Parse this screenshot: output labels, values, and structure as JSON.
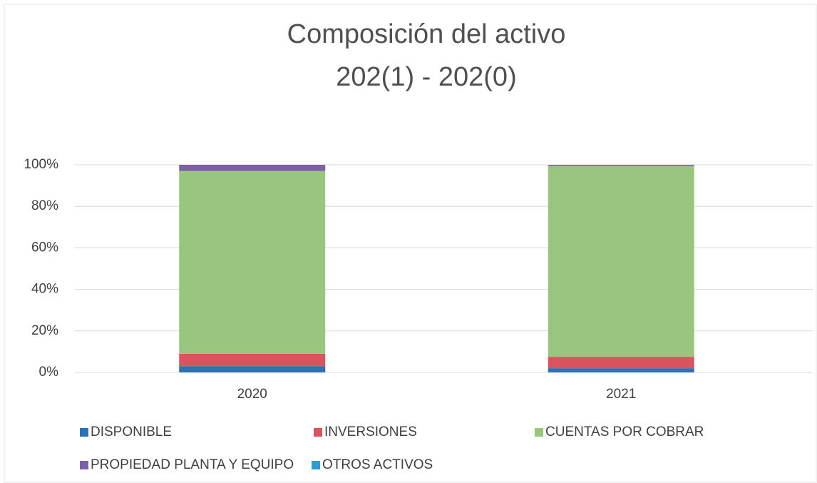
{
  "chart_data": {
    "type": "stacked_bar_100",
    "title": "Composición del activo",
    "subtitle": "202(1) - 202(0)",
    "categories": [
      "2020",
      "2021"
    ],
    "series": [
      {
        "name": "DISPONIBLE",
        "color": "#2e70b5",
        "values": [
          3,
          2
        ]
      },
      {
        "name": "INVERSIONES",
        "color": "#d9545f",
        "values": [
          6,
          5.5
        ]
      },
      {
        "name": "CUENTAS POR COBRAR",
        "color": "#98c67e",
        "values": [
          88,
          92
        ]
      },
      {
        "name": "PROPIEDAD PLANTA Y EQUIPO",
        "color": "#7d5fa8",
        "values": [
          3,
          0.5
        ]
      },
      {
        "name": "OTROS ACTIVOS",
        "color": "#2f9ad6",
        "values": [
          0,
          0
        ]
      }
    ],
    "ylim": [
      0,
      100
    ],
    "yticks": [
      {
        "value": 0,
        "label": "0%"
      },
      {
        "value": 20,
        "label": "20%"
      },
      {
        "value": 40,
        "label": "40%"
      },
      {
        "value": 60,
        "label": "60%"
      },
      {
        "value": 80,
        "label": "80%"
      },
      {
        "value": 100,
        "label": "100%"
      }
    ],
    "grid": true,
    "legend": "bottom"
  }
}
